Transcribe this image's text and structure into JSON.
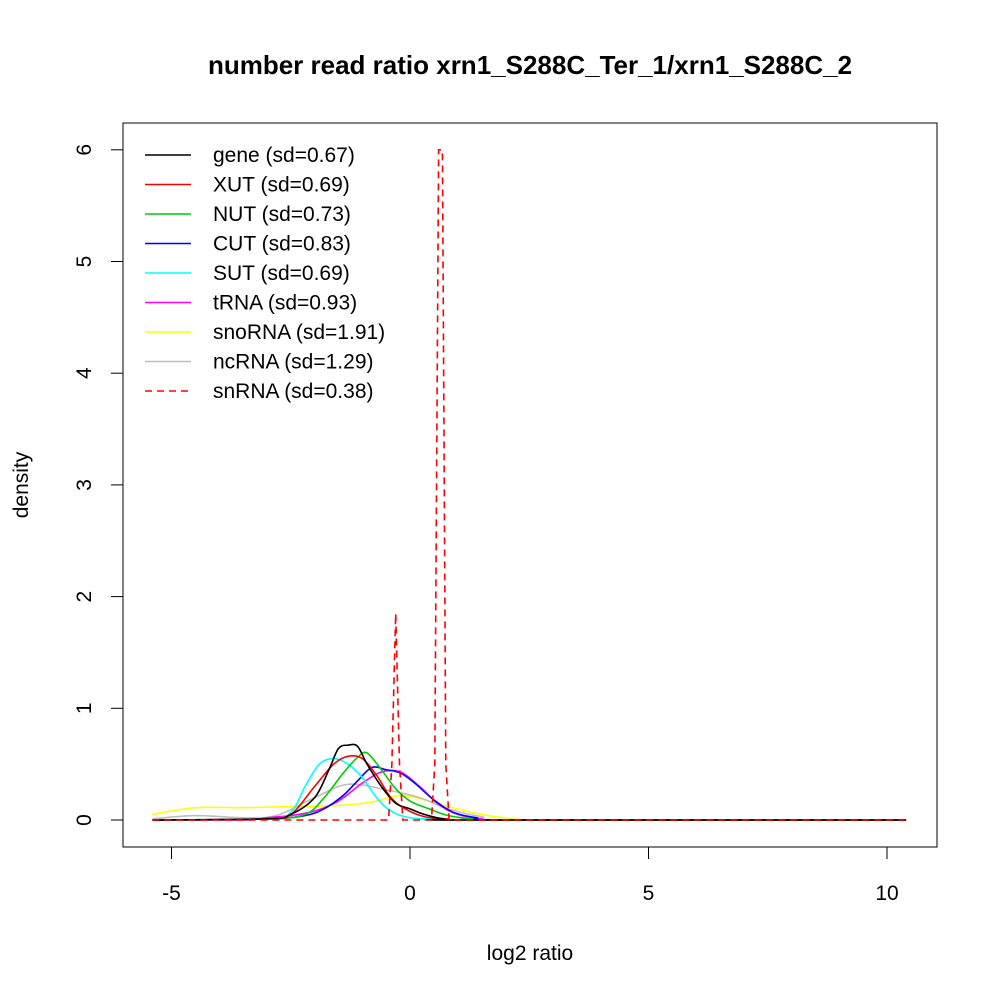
{
  "chart_data": {
    "type": "line",
    "title": "number read ratio xrn1_S288C_Ter_1/xrn1_S288C_2",
    "xlabel": "log2 ratio",
    "ylabel": "density",
    "xlim": [
      -5.6,
      10.6
    ],
    "ylim": [
      -0.25,
      6.25
    ],
    "xticks": [
      -5,
      0,
      5,
      10
    ],
    "yticks": [
      0,
      1,
      2,
      3,
      4,
      5,
      6
    ],
    "grid": false,
    "legend_position": "top-left",
    "series": [
      {
        "name": "gene (sd=0.67)",
        "color": "#000000",
        "dashed": false,
        "points": [
          [
            -5.4,
            0
          ],
          [
            -3,
            0.01
          ],
          [
            -2.5,
            0.05
          ],
          [
            -2,
            0.2
          ],
          [
            -1.7,
            0.45
          ],
          [
            -1.5,
            0.64
          ],
          [
            -1.3,
            0.67
          ],
          [
            -1.1,
            0.66
          ],
          [
            -0.9,
            0.5
          ],
          [
            -0.6,
            0.3
          ],
          [
            -0.3,
            0.15
          ],
          [
            0,
            0.1
          ],
          [
            0.3,
            0.05
          ],
          [
            0.7,
            0.01
          ],
          [
            1.2,
            0
          ],
          [
            10.4,
            0
          ]
        ]
      },
      {
        "name": "XUT (sd=0.69)",
        "color": "#ff0000",
        "dashed": false,
        "points": [
          [
            -5.4,
            0
          ],
          [
            -3,
            0.01
          ],
          [
            -2.5,
            0.05
          ],
          [
            -2,
            0.3
          ],
          [
            -1.6,
            0.5
          ],
          [
            -1.3,
            0.57
          ],
          [
            -1,
            0.55
          ],
          [
            -0.7,
            0.4
          ],
          [
            -0.4,
            0.2
          ],
          [
            -0.1,
            0.1
          ],
          [
            0.3,
            0.03
          ],
          [
            0.8,
            0.01
          ],
          [
            1.3,
            0
          ],
          [
            10.4,
            0
          ]
        ]
      },
      {
        "name": "NUT (sd=0.73)",
        "color": "#00cd00",
        "dashed": false,
        "points": [
          [
            -5.4,
            0
          ],
          [
            -3,
            0.01
          ],
          [
            -2.2,
            0.05
          ],
          [
            -1.8,
            0.2
          ],
          [
            -1.4,
            0.42
          ],
          [
            -1.1,
            0.56
          ],
          [
            -0.9,
            0.6
          ],
          [
            -0.6,
            0.45
          ],
          [
            -0.3,
            0.28
          ],
          [
            0,
            0.17
          ],
          [
            0.4,
            0.1
          ],
          [
            0.8,
            0.04
          ],
          [
            1.3,
            0.01
          ],
          [
            1.8,
            0
          ],
          [
            10.4,
            0
          ]
        ]
      },
      {
        "name": "CUT (sd=0.83)",
        "color": "#0000ff",
        "dashed": false,
        "points": [
          [
            -5.4,
            0
          ],
          [
            -3,
            0.01
          ],
          [
            -2.2,
            0.04
          ],
          [
            -1.8,
            0.1
          ],
          [
            -1.4,
            0.22
          ],
          [
            -1.1,
            0.35
          ],
          [
            -0.8,
            0.47
          ],
          [
            -0.5,
            0.45
          ],
          [
            -0.2,
            0.42
          ],
          [
            0.1,
            0.33
          ],
          [
            0.5,
            0.18
          ],
          [
            0.9,
            0.07
          ],
          [
            1.4,
            0.02
          ],
          [
            2,
            0
          ],
          [
            10.4,
            0
          ]
        ]
      },
      {
        "name": "SUT (sd=0.69)",
        "color": "#00ffff",
        "dashed": false,
        "points": [
          [
            -5.4,
            0
          ],
          [
            -3,
            0.01
          ],
          [
            -2.5,
            0.07
          ],
          [
            -2.2,
            0.3
          ],
          [
            -1.9,
            0.5
          ],
          [
            -1.6,
            0.55
          ],
          [
            -1.3,
            0.5
          ],
          [
            -1,
            0.38
          ],
          [
            -0.7,
            0.2
          ],
          [
            -0.4,
            0.08
          ],
          [
            0,
            0.02
          ],
          [
            0.5,
            0.01
          ],
          [
            1.2,
            0
          ],
          [
            10.4,
            0
          ]
        ]
      },
      {
        "name": "tRNA (sd=0.93)",
        "color": "#ff00ff",
        "dashed": false,
        "points": [
          [
            -5.4,
            0
          ],
          [
            -3.5,
            0
          ],
          [
            -3,
            0.02
          ],
          [
            -2.5,
            0.04
          ],
          [
            -2,
            0.08
          ],
          [
            -1.5,
            0.17
          ],
          [
            -1,
            0.33
          ],
          [
            -0.6,
            0.43
          ],
          [
            -0.2,
            0.43
          ],
          [
            0.2,
            0.3
          ],
          [
            0.6,
            0.14
          ],
          [
            1,
            0.05
          ],
          [
            1.5,
            0.01
          ],
          [
            2.2,
            0
          ],
          [
            10.4,
            0
          ]
        ]
      },
      {
        "name": "snoRNA (sd=1.91)",
        "color": "#ffff00",
        "dashed": false,
        "points": [
          [
            -5.4,
            0.05
          ],
          [
            -4.5,
            0.11
          ],
          [
            -3.5,
            0.11
          ],
          [
            -2.5,
            0.12
          ],
          [
            -1.5,
            0.13
          ],
          [
            -0.8,
            0.16
          ],
          [
            -0.2,
            0.22
          ],
          [
            0.3,
            0.18
          ],
          [
            0.8,
            0.12
          ],
          [
            1.5,
            0.05
          ],
          [
            2.2,
            0.01
          ],
          [
            3,
            0
          ],
          [
            10.4,
            0
          ]
        ]
      },
      {
        "name": "ncRNA (sd=1.29)",
        "color": "#bebebe",
        "dashed": false,
        "points": [
          [
            -5.4,
            0.01
          ],
          [
            -4.5,
            0.04
          ],
          [
            -3.5,
            0.02
          ],
          [
            -2.8,
            0.04
          ],
          [
            -2,
            0.2
          ],
          [
            -1.3,
            0.32
          ],
          [
            -0.5,
            0.27
          ],
          [
            0.2,
            0.2
          ],
          [
            0.8,
            0.1
          ],
          [
            1.5,
            0.03
          ],
          [
            2.3,
            0
          ],
          [
            10.4,
            0
          ]
        ]
      },
      {
        "name": "snRNA (sd=0.38)",
        "color": "#ff0000",
        "dashed": true,
        "points": [
          [
            -5.4,
            0
          ],
          [
            -0.45,
            0
          ],
          [
            -0.38,
            0.5
          ],
          [
            -0.3,
            1.85
          ],
          [
            -0.22,
            0.5
          ],
          [
            -0.15,
            0
          ],
          [
            0.45,
            0
          ],
          [
            0.52,
            0.5
          ],
          [
            0.6,
            6.0
          ],
          [
            0.68,
            6.0
          ],
          [
            0.75,
            0.5
          ],
          [
            0.82,
            0
          ],
          [
            10.4,
            0
          ]
        ]
      }
    ]
  }
}
